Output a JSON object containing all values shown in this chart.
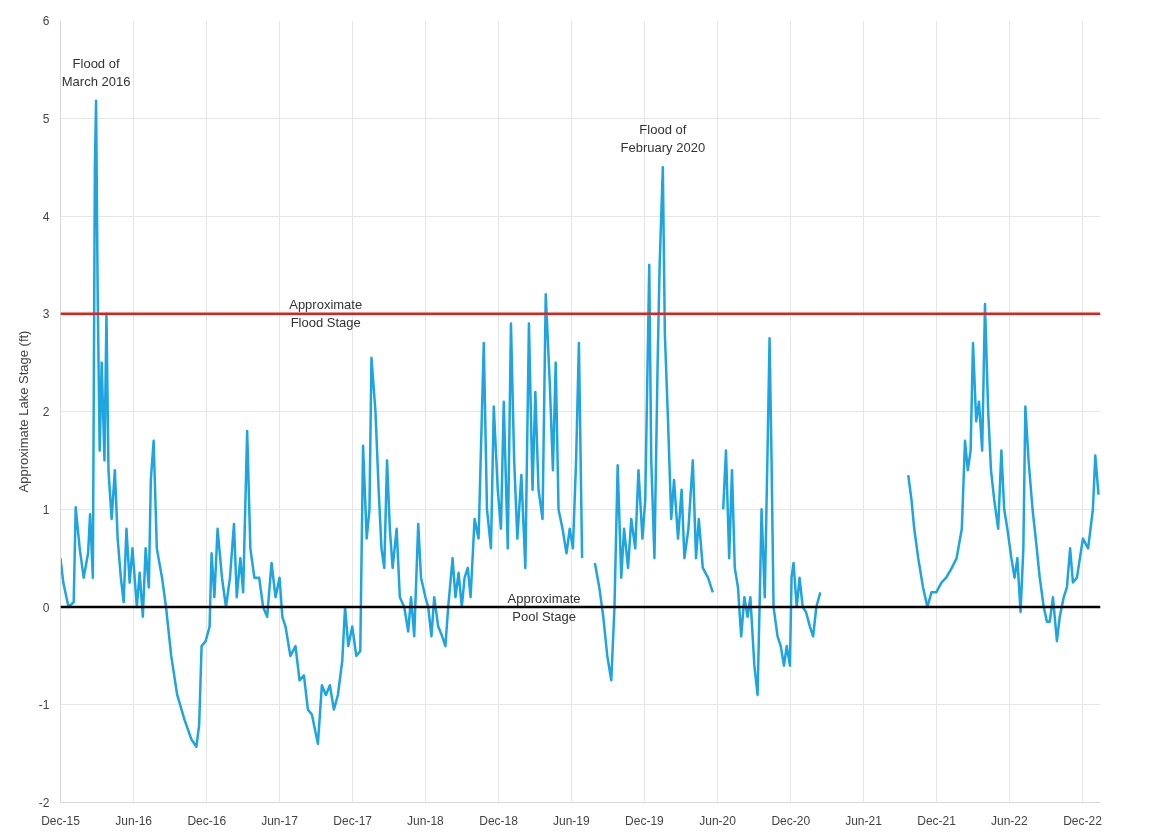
{
  "chart_data": {
    "type": "line",
    "ylabel": "Approximate Lake Stage (ft)",
    "xlim": [
      "2015-12-01",
      "2023-01-15"
    ],
    "ylim": [
      -2,
      6
    ],
    "yticks": [
      -2,
      -1,
      0,
      1,
      2,
      3,
      4,
      5,
      6
    ],
    "xticks": [
      {
        "value": "2015-12-01",
        "label": "Dec-15"
      },
      {
        "value": "2016-06-01",
        "label": "Jun-16"
      },
      {
        "value": "2016-12-01",
        "label": "Dec-16"
      },
      {
        "value": "2017-06-01",
        "label": "Jun-17"
      },
      {
        "value": "2017-12-01",
        "label": "Dec-17"
      },
      {
        "value": "2018-06-01",
        "label": "Jun-18"
      },
      {
        "value": "2018-12-01",
        "label": "Dec-18"
      },
      {
        "value": "2019-06-01",
        "label": "Jun-19"
      },
      {
        "value": "2019-12-01",
        "label": "Dec-19"
      },
      {
        "value": "2020-06-01",
        "label": "Jun-20"
      },
      {
        "value": "2020-12-01",
        "label": "Dec-20"
      },
      {
        "value": "2021-06-01",
        "label": "Jun-21"
      },
      {
        "value": "2021-12-01",
        "label": "Dec-21"
      },
      {
        "value": "2022-06-01",
        "label": "Jun-22"
      },
      {
        "value": "2022-12-01",
        "label": "Dec-22"
      }
    ],
    "grid": true,
    "marker": "none",
    "line_style": "solid",
    "ref_lines": [
      {
        "axis": "y",
        "value": 3,
        "label": "Approximate\nFlood Stage",
        "color": "#e0201b"
      },
      {
        "axis": "y",
        "value": 0,
        "label": "Approximate\nPool Stage",
        "color": "#000000"
      }
    ],
    "annotations": [
      {
        "text": "Flood of\nMarch 2016",
        "x": "2016-02-28",
        "y": 5.18
      },
      {
        "text": "Flood of\nFebruary 2020",
        "x": "2020-01-16",
        "y": 4.5
      }
    ],
    "series": [
      {
        "color": "#1ea5e0",
        "x": [
          "2015-12-01",
          "2015-12-08",
          "2015-12-21",
          "2016-01-03",
          "2016-01-08",
          "2016-01-18",
          "2016-01-28",
          "2016-02-08",
          "2016-02-13",
          "2016-02-20",
          "2016-02-25",
          "2016-02-28",
          "2016-03-03",
          "2016-03-08",
          "2016-03-13",
          "2016-03-20",
          "2016-03-25",
          "2016-03-30",
          "2016-04-07",
          "2016-04-15",
          "2016-04-22",
          "2016-04-30",
          "2016-05-07",
          "2016-05-14",
          "2016-05-22",
          "2016-05-29",
          "2016-06-09",
          "2016-06-16",
          "2016-06-24",
          "2016-07-01",
          "2016-07-09",
          "2016-07-14",
          "2016-07-21",
          "2016-07-29",
          "2016-08-11",
          "2016-08-21",
          "2016-09-03",
          "2016-09-18",
          "2016-10-06",
          "2016-10-23",
          "2016-11-05",
          "2016-11-12",
          "2016-11-18",
          "2016-11-28",
          "2016-12-08",
          "2016-12-13",
          "2016-12-20",
          "2016-12-28",
          "2017-01-08",
          "2017-01-18",
          "2017-01-28",
          "2017-02-07",
          "2017-02-14",
          "2017-02-23",
          "2017-03-02",
          "2017-03-12",
          "2017-03-20",
          "2017-03-30",
          "2017-04-11",
          "2017-04-21",
          "2017-05-01",
          "2017-05-12",
          "2017-05-22",
          "2017-06-01",
          "2017-06-08",
          "2017-06-16",
          "2017-06-28",
          "2017-07-11",
          "2017-07-21",
          "2017-08-01",
          "2017-08-11",
          "2017-08-21",
          "2017-09-05",
          "2017-09-15",
          "2017-09-25",
          "2017-10-05",
          "2017-10-15",
          "2017-10-25",
          "2017-11-05",
          "2017-11-12",
          "2017-11-20",
          "2017-11-30",
          "2017-12-10",
          "2017-12-20",
          "2017-12-27",
          "2018-01-05",
          "2018-01-12",
          "2018-01-17",
          "2018-01-27",
          "2018-02-04",
          "2018-02-11",
          "2018-02-18",
          "2018-02-25",
          "2018-03-04",
          "2018-03-11",
          "2018-03-21",
          "2018-03-29",
          "2018-04-09",
          "2018-04-19",
          "2018-04-26",
          "2018-05-04",
          "2018-05-14",
          "2018-05-21",
          "2018-06-01",
          "2018-06-08",
          "2018-06-16",
          "2018-06-23",
          "2018-07-03",
          "2018-07-13",
          "2018-07-21",
          "2018-07-28",
          "2018-08-08",
          "2018-08-15",
          "2018-08-23",
          "2018-08-31",
          "2018-09-07",
          "2018-09-15",
          "2018-09-22",
          "2018-10-02",
          "2018-10-12",
          "2018-10-25",
          "2018-11-02",
          "2018-11-12",
          "2018-11-19",
          "2018-11-29",
          "2018-12-07",
          "2018-12-14",
          "2018-12-24",
          "2019-01-01",
          "2019-01-09",
          "2019-01-17",
          "2019-01-27",
          "2019-02-06",
          "2019-02-15",
          "2019-02-24",
          "2019-03-03",
          "2019-03-11",
          "2019-03-21",
          "2019-03-29",
          "2019-04-08",
          "2019-04-16",
          "2019-04-23",
          "2019-04-30",
          "2019-05-10",
          "2019-05-20",
          "2019-05-28",
          "2019-06-05",
          "2019-06-13",
          "2019-06-20",
          "2019-06-28",
          "2019-07-15",
          "2019-07-30",
          "2019-08-10",
          "2019-08-20",
          "2019-08-30",
          "2019-09-09",
          "2019-09-17",
          "2019-09-25",
          "2019-10-04",
          "2019-10-11",
          "2019-10-21",
          "2019-10-29",
          "2019-11-08",
          "2019-11-16",
          "2019-11-26",
          "2019-12-03",
          "2019-12-13",
          "2019-12-18",
          "2019-12-26",
          "2020-01-03",
          "2020-01-08",
          "2020-01-16",
          "2020-01-21",
          "2020-01-29",
          "2020-02-06",
          "2020-02-13",
          "2020-02-23",
          "2020-03-03",
          "2020-03-10",
          "2020-03-20",
          "2020-03-31",
          "2020-04-08",
          "2020-04-15",
          "2020-04-25",
          "2020-05-08",
          "2020-05-20",
          "2020-06-02",
          "2020-06-15",
          "2020-06-22",
          "2020-06-30",
          "2020-07-07",
          "2020-07-14",
          "2020-07-22",
          "2020-07-30",
          "2020-08-07",
          "2020-08-15",
          "2020-08-22",
          "2020-09-01",
          "2020-09-09",
          "2020-09-14",
          "2020-09-19",
          "2020-09-27",
          "2020-10-04",
          "2020-10-09",
          "2020-10-14",
          "2020-10-19",
          "2020-10-29",
          "2020-11-06",
          "2020-11-14",
          "2020-11-21",
          "2020-11-29",
          "2020-12-03",
          "2020-12-08",
          "2020-12-16",
          "2020-12-23",
          "2020-12-31",
          "2021-01-08",
          "2021-01-18",
          "2021-01-26",
          "2021-02-03",
          "2021-02-13",
          "2021-05-29",
          "2021-09-21",
          "2021-09-29",
          "2021-10-06",
          "2021-10-16",
          "2021-10-28",
          "2021-11-08",
          "2021-11-18",
          "2021-11-30",
          "2021-12-13",
          "2021-12-25",
          "2022-01-08",
          "2022-01-20",
          "2022-02-02",
          "2022-02-10",
          "2022-02-17",
          "2022-02-24",
          "2022-03-02",
          "2022-03-10",
          "2022-03-17",
          "2022-03-25",
          "2022-04-01",
          "2022-04-09",
          "2022-04-16",
          "2022-04-24",
          "2022-05-04",
          "2022-05-12",
          "2022-05-19",
          "2022-05-27",
          "2022-06-06",
          "2022-06-14",
          "2022-06-21",
          "2022-06-29",
          "2022-07-06",
          "2022-07-11",
          "2022-07-19",
          "2022-07-29",
          "2022-08-06",
          "2022-08-16",
          "2022-08-26",
          "2022-09-03",
          "2022-09-10",
          "2022-09-18",
          "2022-09-28",
          "2022-10-05",
          "2022-10-15",
          "2022-10-23",
          "2022-10-31",
          "2022-11-07",
          "2022-11-17",
          "2022-12-02",
          "2022-12-15",
          "2022-12-27",
          "2023-01-02",
          "2023-01-10"
        ],
        "values": [
          0.5,
          0.25,
          0.0,
          0.05,
          1.02,
          0.6,
          0.3,
          0.55,
          0.95,
          0.3,
          4.5,
          5.18,
          3.2,
          1.6,
          2.5,
          1.5,
          3.0,
          1.4,
          0.9,
          1.4,
          0.7,
          0.3,
          0.05,
          0.8,
          0.25,
          0.6,
          0.0,
          0.35,
          -0.1,
          0.6,
          0.2,
          1.3,
          1.7,
          0.6,
          0.3,
          0.0,
          -0.5,
          -0.9,
          -1.15,
          -1.35,
          -1.43,
          -1.2,
          -0.4,
          -0.35,
          -0.2,
          0.55,
          0.1,
          0.8,
          0.3,
          0.0,
          0.3,
          0.85,
          0.1,
          0.5,
          0.15,
          1.8,
          0.6,
          0.3,
          0.3,
          0.0,
          -0.1,
          0.45,
          0.1,
          0.3,
          -0.1,
          -0.2,
          -0.5,
          -0.4,
          -0.75,
          -0.7,
          -1.05,
          -1.1,
          -1.4,
          -0.8,
          -0.9,
          -0.8,
          -1.05,
          -0.9,
          -0.55,
          0.0,
          -0.4,
          -0.2,
          -0.5,
          -0.45,
          1.65,
          0.7,
          1.0,
          2.55,
          2.0,
          1.2,
          0.6,
          0.4,
          1.5,
          0.8,
          0.4,
          0.8,
          0.1,
          0.0,
          -0.25,
          0.1,
          -0.3,
          0.85,
          0.3,
          0.1,
          0.0,
          -0.3,
          0.1,
          -0.2,
          -0.3,
          -0.4,
          0.0,
          0.5,
          0.1,
          0.35,
          0.0,
          0.3,
          0.4,
          0.1,
          0.9,
          0.7,
          2.7,
          1.0,
          0.6,
          2.05,
          1.2,
          0.8,
          2.1,
          0.6,
          2.9,
          1.5,
          0.7,
          1.35,
          0.4,
          2.9,
          1.2,
          2.2,
          1.2,
          0.9,
          3.2,
          2.3,
          1.4,
          2.5,
          1.0,
          0.8,
          0.55,
          0.8,
          0.6,
          1.5,
          2.7,
          0.5,
          null,
          0.45,
          0.2,
          -0.1,
          -0.5,
          -0.75,
          0.0,
          1.45,
          0.3,
          0.8,
          0.4,
          0.9,
          0.6,
          1.4,
          0.7,
          1.1,
          3.5,
          1.5,
          0.5,
          2.5,
          3.5,
          4.5,
          2.8,
          1.9,
          0.9,
          1.3,
          0.7,
          1.2,
          0.5,
          0.8,
          1.5,
          0.5,
          0.9,
          0.4,
          0.3,
          0.15,
          null,
          1.0,
          1.6,
          0.5,
          1.4,
          0.4,
          0.2,
          -0.3,
          0.1,
          -0.1,
          0.1,
          -0.6,
          -0.9,
          0.0,
          1.0,
          0.1,
          1.6,
          2.75,
          1.5,
          0.0,
          -0.3,
          -0.4,
          -0.6,
          -0.4,
          -0.6,
          0.3,
          0.45,
          0.0,
          0.3,
          0.0,
          -0.05,
          -0.2,
          -0.3,
          0.0,
          0.15,
          null,
          1.35,
          1.1,
          0.8,
          0.5,
          0.2,
          0.0,
          0.15,
          0.15,
          0.25,
          0.3,
          0.4,
          0.5,
          0.8,
          1.7,
          1.4,
          1.6,
          2.7,
          1.9,
          2.1,
          1.6,
          3.1,
          2.0,
          1.4,
          1.1,
          0.8,
          1.6,
          1.0,
          0.8,
          0.5,
          0.3,
          0.5,
          -0.05,
          0.6,
          2.05,
          1.5,
          1.0,
          0.7,
          0.3,
          0.0,
          -0.15,
          -0.15,
          0.1,
          -0.35,
          -0.1,
          0.1,
          0.2,
          0.6,
          0.25,
          0.3,
          0.7,
          0.6,
          1.0,
          1.55,
          1.15
        ]
      }
    ]
  }
}
